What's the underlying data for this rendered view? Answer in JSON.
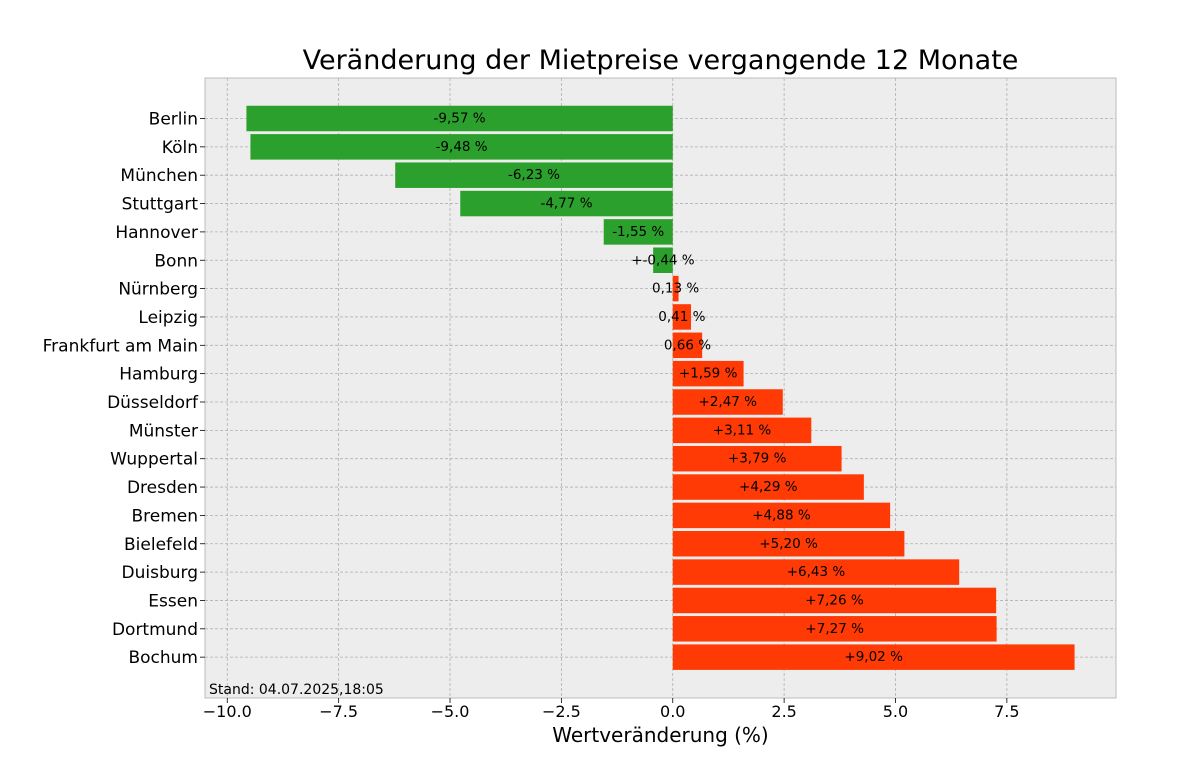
{
  "chart_data": {
    "type": "bar",
    "orientation": "horizontal",
    "title": "Veränderung der Mietpreise vergangende 12 Monate",
    "xlabel": "Wertveränderung (%)",
    "ylabel": "",
    "xlim": [
      -10.5,
      9.95
    ],
    "xticks": [
      -10.0,
      -7.5,
      -5.0,
      -2.5,
      0.0,
      2.5,
      5.0,
      7.5
    ],
    "xtick_labels": [
      "−10.0",
      "−7.5",
      "−5.0",
      "−2.5",
      "0.0",
      "2.5",
      "5.0",
      "7.5"
    ],
    "grid": true,
    "categories": [
      "Berlin",
      "Köln",
      "München",
      "Stuttgart",
      "Hannover",
      "Bonn",
      "Nürnberg",
      "Leipzig",
      "Frankfurt am Main",
      "Hamburg",
      "Düsseldorf",
      "Münster",
      "Wuppertal",
      "Dresden",
      "Bremen",
      "Bielefeld",
      "Duisburg",
      "Essen",
      "Dortmund",
      "Bochum"
    ],
    "values": [
      -9.57,
      -9.48,
      -6.23,
      -4.77,
      -1.55,
      -0.44,
      0.13,
      0.41,
      0.66,
      1.59,
      2.47,
      3.11,
      3.79,
      4.29,
      4.88,
      5.2,
      6.43,
      7.26,
      7.27,
      9.02
    ],
    "labels": [
      "-9,57 %",
      "-9,48 %",
      "-6,23 %",
      "-4,77 %",
      "-1,55 %",
      "+-0,44 %",
      "0,13 %",
      "0,41 %",
      "0,66 %",
      "+1,59 %",
      "+2,47 %",
      "+3,11 %",
      "+3,79 %",
      "+4,29 %",
      "+4,88 %",
      "+5,20 %",
      "+6,43 %",
      "+7,26 %",
      "+7,27 %",
      "+9,02 %"
    ],
    "colors": {
      "negative": "#2ca02c",
      "positive": "#ff3a05",
      "plot_background": "#ededed",
      "grid": "#b0b0b0"
    },
    "annotation": "Stand: 04.07.2025,18:05"
  }
}
